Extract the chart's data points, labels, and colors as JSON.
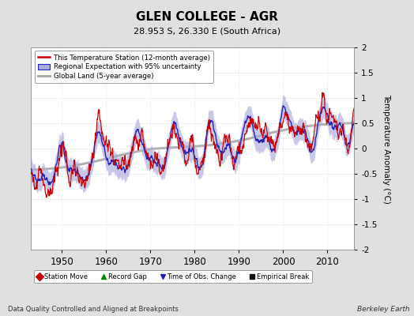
{
  "title": "GLEN COLLEGE - AGR",
  "subtitle": "28.953 S, 26.330 E (South Africa)",
  "ylabel": "Temperature Anomaly (°C)",
  "xlabel_footer": "Data Quality Controlled and Aligned at Breakpoints",
  "footer_right": "Berkeley Earth",
  "ylim": [
    -2,
    2
  ],
  "xlim": [
    1943,
    2016
  ],
  "xticks": [
    1950,
    1960,
    1970,
    1980,
    1990,
    2000,
    2010
  ],
  "yticks": [
    -2,
    -1.5,
    -1,
    -0.5,
    0,
    0.5,
    1,
    1.5,
    2
  ],
  "legend_entries": [
    "This Temperature Station (12-month average)",
    "Regional Expectation with 95% uncertainty",
    "Global Land (5-year average)"
  ],
  "station_color": "#CC0000",
  "regional_color": "#2222BB",
  "regional_shade_color": "#AAAADD",
  "global_color": "#AAAAAA",
  "background_color": "#E0E0E0",
  "plot_bg_color": "#FFFFFF",
  "grid_color": "#D0D0D0",
  "seed": 12
}
